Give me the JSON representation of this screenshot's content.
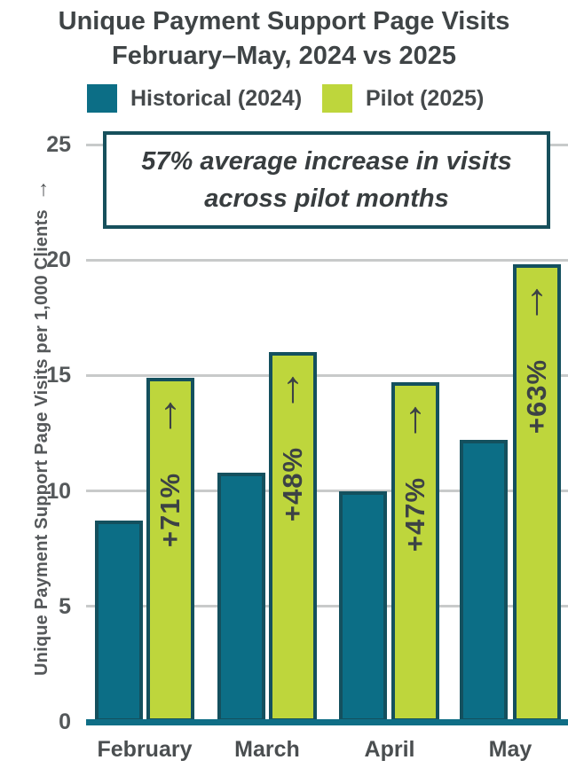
{
  "title": {
    "line1": "Unique Payment Support Page Visits",
    "line2": "February–May, 2024 vs 2025"
  },
  "legend": [
    {
      "label": "Historical (2024)",
      "color": "#0C6E86"
    },
    {
      "label": "Pilot (2025)",
      "color": "#BED63C"
    }
  ],
  "annotation": {
    "text": "57% average increase in visits across pilot months"
  },
  "chart_data": {
    "type": "bar",
    "title": "Unique Payment Support Page Visits February–May, 2024 vs 2025",
    "categories": [
      "February",
      "March",
      "April",
      "May"
    ],
    "series": [
      {
        "name": "Historical (2024)",
        "color": "#0C6E86",
        "values": [
          8.7,
          10.8,
          10.0,
          12.2
        ]
      },
      {
        "name": "Pilot (2025)",
        "color": "#BED63C",
        "values": [
          14.9,
          16.0,
          14.7,
          19.8
        ]
      }
    ],
    "increase_labels": [
      "+71%",
      "+48%",
      "+47%",
      "+63%"
    ],
    "increase_arrow": "↑",
    "average_increase_note": "57% average increase in visits across pilot months",
    "xlabel": "",
    "ylabel": "Unique Payment Support Page Visits per 1,000 Clients",
    "ylabel_arrow": "→",
    "yticks": [
      0,
      5,
      10,
      15,
      20,
      25
    ],
    "ylim": [
      0,
      25
    ],
    "grid": true,
    "legend_position": "top"
  },
  "colors": {
    "historical": "#0C6E86",
    "pilot": "#BED63C",
    "bar_border": "#14505E",
    "axis_line": "#0F6E86",
    "gridline": "#C8CACA",
    "title_text": "#3F4446",
    "annotation_border": "#17505C",
    "annotation_text": "#383D3F",
    "pct_text": "#3C4245"
  }
}
